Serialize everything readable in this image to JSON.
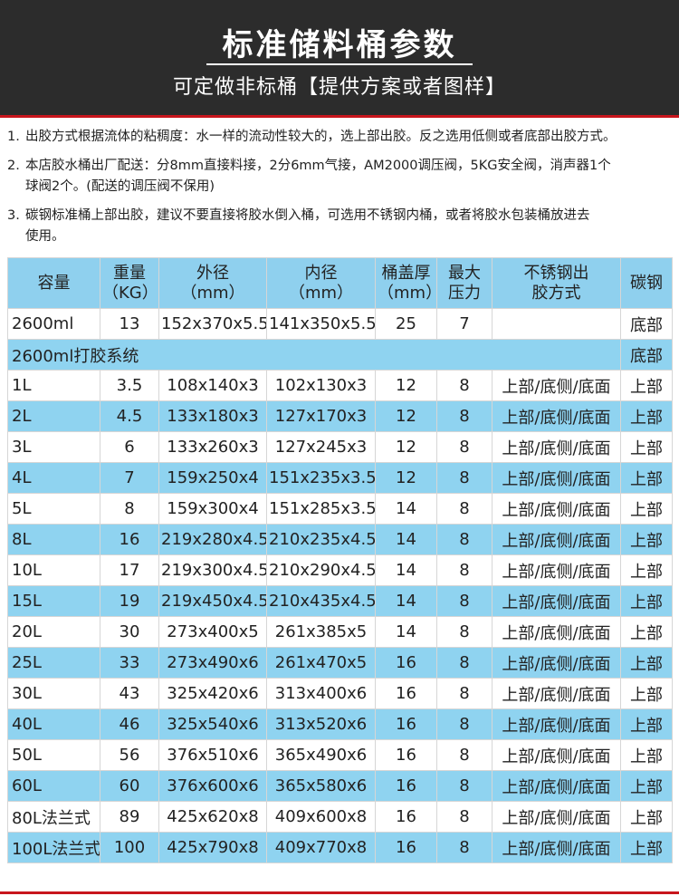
{
  "header": {
    "title": "标准储料桶参数",
    "subtitle": "可定做非标桶【提供方案或者图样】"
  },
  "notes": [
    {
      "number": "1.",
      "lines": [
        "出胶方式根据流体的粘稠度：水一样的流动性较大的，选上部出胶。反之选用低侧或者底部出胶方式。"
      ]
    },
    {
      "number": "2.",
      "lines": [
        "本店胶水桶出厂配送：分8mm直接料接，2分6mm气接，AM2000调压阀，5KG安全阀，消声器1个",
        "球阀2个。(配送的调压阀不保用)"
      ]
    },
    {
      "number": "3.",
      "lines": [
        "碳钢标准桶上部出胶，建议不要直接将胶水倒入桶，可选用不锈钢内桶，或者将胶水包装桶放进去",
        "使用。"
      ]
    }
  ],
  "table": {
    "header": [
      [
        "容量"
      ],
      [
        "重量",
        "（KG）"
      ],
      [
        "外径",
        "（mm）"
      ],
      [
        "内径",
        "（mm）"
      ],
      [
        "桶盖厚",
        "（mm）"
      ],
      [
        "最大",
        "压力"
      ],
      [
        "不锈钢出",
        "胶方式"
      ],
      [
        "碳钢"
      ]
    ],
    "rows": [
      [
        "2600ml",
        "13",
        "152x370x5.5",
        "141x350x5.5",
        "25",
        "7",
        null,
        "底部"
      ],
      [
        "2600ml打胶系统",
        "底部"
      ],
      [
        "1L",
        "3.5",
        "108x140x3",
        "102x130x3",
        "12",
        "8",
        "上部/底侧/底面",
        "上部"
      ],
      [
        "2L",
        "4.5",
        "133x180x3",
        "127x170x3",
        "12",
        "8",
        "上部/底侧/底面",
        "上部"
      ],
      [
        "3L",
        "6",
        "133x260x3",
        "127x245x3",
        "12",
        "8",
        "上部/底侧/底面",
        "上部"
      ],
      [
        "4L",
        "7",
        "159x250x4",
        "151x235x3.5",
        "12",
        "8",
        "上部/底侧/底面",
        "上部"
      ],
      [
        "5L",
        "8",
        "159x300x4",
        "151x285x3.5",
        "14",
        "8",
        "上部/底侧/底面",
        "上部"
      ],
      [
        "8L",
        "16",
        "219x280x4.5",
        "210x235x4.5",
        "14",
        "8",
        "上部/底侧/底面",
        "上部"
      ],
      [
        "10L",
        "17",
        "219x300x4.5",
        "210x290x4.5",
        "14",
        "8",
        "上部/底侧/底面",
        "上部"
      ],
      [
        "15L",
        "19",
        "219x450x4.5",
        "210x435x4.5",
        "14",
        "8",
        "上部/底侧/底面",
        "上部"
      ],
      [
        "20L",
        "30",
        "273x400x5",
        "261x385x5",
        "14",
        "8",
        "上部/底侧/底面",
        "上部"
      ],
      [
        "25L",
        "33",
        "273x490x6",
        "261x470x5",
        "16",
        "8",
        "上部/底侧/底面",
        "上部"
      ],
      [
        "30L",
        "43",
        "325x420x6",
        "313x400x6",
        "16",
        "8",
        "上部/底侧/底面",
        "上部"
      ],
      [
        "40L",
        "46",
        "325x540x6",
        "313x520x6",
        "16",
        "8",
        "上部/底侧/底面",
        "上部"
      ],
      [
        "50L",
        "56",
        "376x510x6",
        "365x490x6",
        "16",
        "8",
        "上部/底侧/底面",
        "上部"
      ],
      [
        "60L",
        "60",
        "376x600x6",
        "365x580x6",
        "16",
        "8",
        "上部/底侧/底面",
        "上部"
      ],
      [
        "80L法兰式",
        "89",
        "425x620x8",
        "409x600x8",
        "16",
        "8",
        "上部/底侧/底面",
        "上部"
      ],
      [
        "100L法兰式",
        "100",
        "425x790x8",
        "409x770x8",
        "16",
        "8",
        "上部/底侧/底面",
        "上部"
      ]
    ]
  }
}
